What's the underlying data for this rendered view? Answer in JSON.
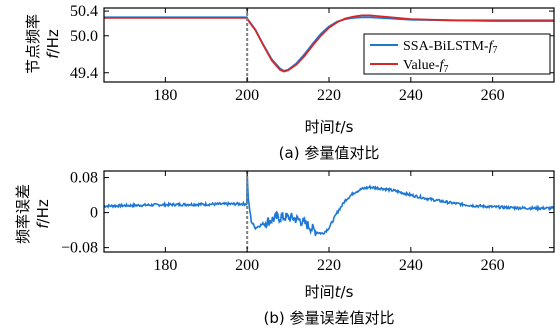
{
  "chart_data": [
    {
      "type": "line",
      "caption": "(a) 参量值对比",
      "xlabel": "时间t/s",
      "ylabel": "节点频率 f/Hz",
      "xlim": [
        165,
        275
      ],
      "ylim": [
        49.25,
        50.45
      ],
      "xticks": [
        180,
        200,
        220,
        240,
        260
      ],
      "yticks": [
        49.4,
        50.0,
        50.4
      ],
      "ytick_labels": [
        "49.4",
        "50.0",
        "50.4"
      ],
      "vline_x": 200,
      "legend_position": "right",
      "colors": {
        "blue": "#1f77d4",
        "red": "#d62728",
        "vline": "#808080"
      },
      "series": [
        {
          "name": "SSA-BiLSTM-f7",
          "color": "#1f77d4",
          "x": [
            165,
            199.9,
            200,
            202,
            204,
            206,
            208,
            209,
            210,
            212,
            214,
            216,
            218,
            220,
            222,
            224,
            226,
            228,
            230,
            235,
            240,
            250,
            260,
            275
          ],
          "y": [
            50.3,
            50.3,
            50.28,
            50.1,
            49.85,
            49.62,
            49.47,
            49.43,
            49.45,
            49.55,
            49.7,
            49.87,
            50.03,
            50.15,
            50.23,
            50.27,
            50.29,
            50.3,
            50.3,
            50.28,
            50.26,
            50.25,
            50.25,
            50.25
          ]
        },
        {
          "name": "Value-f7",
          "color": "#d62728",
          "x": [
            165,
            199.9,
            200,
            202,
            204,
            206,
            208,
            209,
            210,
            212,
            214,
            216,
            218,
            220,
            222,
            224,
            226,
            228,
            230,
            235,
            240,
            250,
            260,
            275
          ],
          "y": [
            50.29,
            50.29,
            50.27,
            50.09,
            49.84,
            49.6,
            49.45,
            49.42,
            49.44,
            49.53,
            49.67,
            49.84,
            50.0,
            50.13,
            50.22,
            50.28,
            50.31,
            50.33,
            50.33,
            50.3,
            50.27,
            50.25,
            50.24,
            50.24
          ]
        }
      ]
    },
    {
      "type": "line",
      "caption": "(b) 参量误差值对比",
      "xlabel": "时间t/s",
      "ylabel": "频率误差 f/Hz",
      "xlim": [
        165,
        275
      ],
      "ylim": [
        -0.09,
        0.095
      ],
      "xticks": [
        180,
        200,
        220,
        240,
        260
      ],
      "yticks": [
        -0.08,
        0,
        0.08
      ],
      "ytick_labels": [
        "−0.08",
        "0",
        "0.08"
      ],
      "vline_x": 200,
      "colors": {
        "blue": "#1f77d4",
        "vline": "#808080"
      },
      "series": [
        {
          "color": "#1f77d4",
          "x": [
            165,
            180,
            199.9,
            200,
            200.3,
            201,
            202,
            203,
            205,
            207,
            209,
            211,
            213,
            215,
            217,
            218.5,
            220,
            222,
            224,
            226,
            228,
            230,
            233,
            236,
            240,
            245,
            250,
            255,
            260,
            265,
            270,
            275
          ],
          "y": [
            0.015,
            0.018,
            0.02,
            0.085,
            0.03,
            -0.02,
            -0.035,
            -0.03,
            -0.02,
            -0.012,
            -0.01,
            -0.012,
            -0.018,
            -0.03,
            -0.045,
            -0.048,
            -0.035,
            0.0,
            0.028,
            0.045,
            0.054,
            0.058,
            0.055,
            0.05,
            0.04,
            0.03,
            0.022,
            0.016,
            0.013,
            0.011,
            0.01,
            0.01
          ]
        }
      ]
    }
  ]
}
